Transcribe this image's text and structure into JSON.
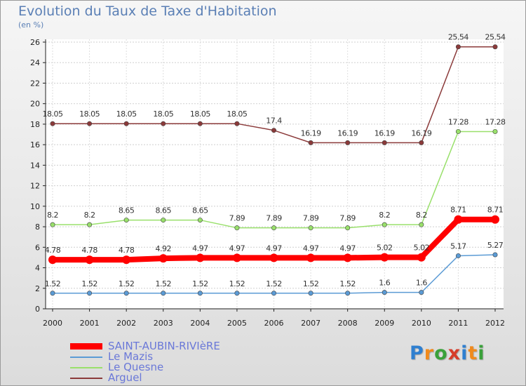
{
  "title": "Evolution du Taux de Taxe d'Habitation",
  "subtitle": "(en %)",
  "logo": {
    "text": "Proxiti",
    "letters": [
      {
        "ch": "P",
        "color": "#2f7fd0"
      },
      {
        "ch": "r",
        "color": "#f08a1c"
      },
      {
        "ch": "o",
        "color": "#3aa13a"
      },
      {
        "ch": "x",
        "color": "#d63c2a"
      },
      {
        "ch": "i",
        "color": "#2f7fd0"
      },
      {
        "ch": "t",
        "color": "#f08a1c"
      },
      {
        "ch": "i",
        "color": "#3aa13a"
      }
    ]
  },
  "chart_data": {
    "type": "line",
    "title": "Evolution du Taux de Taxe d'Habitation",
    "ylabel": "(en %)",
    "xlabel": "",
    "ylim": [
      0,
      26
    ],
    "yticks": [
      0,
      2,
      4,
      6,
      8,
      10,
      12,
      14,
      16,
      18,
      20,
      22,
      24,
      26
    ],
    "grid": "horizontal dashed",
    "legend_position": "bottom-left",
    "categories": [
      "2000",
      "2001",
      "2002",
      "2003",
      "2004",
      "2005",
      "2006",
      "2007",
      "2008",
      "2009",
      "2010",
      "2011",
      "2012"
    ],
    "series": [
      {
        "name": "SAINT-AUBIN-RIVIèRE",
        "color": "#ff0000",
        "emphasis": true,
        "values": [
          4.78,
          4.78,
          4.78,
          4.92,
          4.97,
          4.97,
          4.97,
          4.97,
          4.97,
          5.02,
          5.02,
          8.71,
          8.71
        ],
        "labels": [
          "4.78",
          "4.78",
          "4.78",
          "4.92",
          "4.97",
          "4.97",
          "4.97",
          "4.97",
          "4.97",
          "5.02",
          "5.02",
          "8.71",
          "8.71"
        ]
      },
      {
        "name": "Le Mazis",
        "color": "#5b9bd5",
        "values": [
          1.52,
          1.52,
          1.52,
          1.52,
          1.52,
          1.52,
          1.52,
          1.52,
          1.52,
          1.6,
          1.6,
          5.17,
          5.27
        ],
        "labels": [
          "1.52",
          "1.52",
          "1.52",
          "1.52",
          "1.52",
          "1.52",
          "1.52",
          "1.52",
          "1.52",
          "1.6",
          "1.6",
          "5.17",
          "5.27"
        ]
      },
      {
        "name": "Le Quesne",
        "color": "#99e06b",
        "values": [
          8.2,
          8.2,
          8.65,
          8.65,
          8.65,
          7.89,
          7.89,
          7.89,
          7.89,
          8.2,
          8.2,
          17.28,
          17.28
        ],
        "labels": [
          "8.2",
          "8.2",
          "8.65",
          "8.65",
          "8.65",
          "7.89",
          "7.89",
          "7.89",
          "7.89",
          "8.2",
          "8.2",
          "17.28",
          "17.28"
        ]
      },
      {
        "name": "Arguel",
        "color": "#8b3a3a",
        "values": [
          18.05,
          18.05,
          18.05,
          18.05,
          18.05,
          18.05,
          17.4,
          16.19,
          16.19,
          16.19,
          16.19,
          25.54,
          25.54
        ],
        "labels": [
          "18.05",
          "18.05",
          "18.05",
          "18.05",
          "18.05",
          "18.05",
          "17.4",
          "16.19",
          "16.19",
          "16.19",
          "16.19",
          "25.54",
          "25.54"
        ]
      }
    ]
  }
}
